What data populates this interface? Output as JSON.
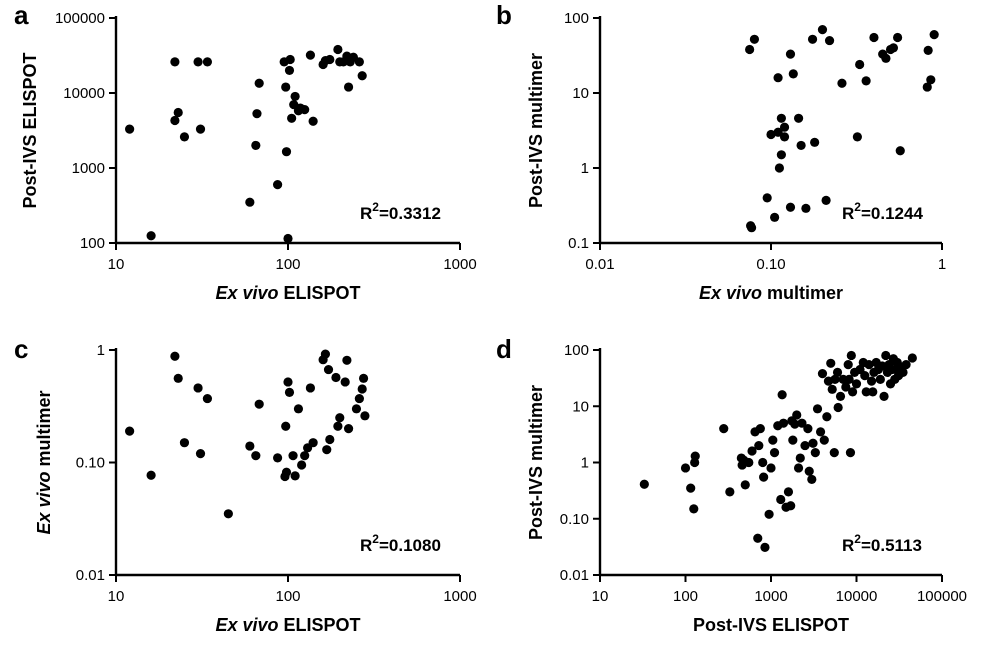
{
  "chart_data": [
    {
      "panel": "a",
      "type": "scatter",
      "xlabel": {
        "italic": "Ex vivo",
        "plain": " ELISPOT"
      },
      "ylabel": {
        "italic": "",
        "plain": "Post-IVS ELISPOT"
      },
      "xscale": "log",
      "yscale": "log",
      "xlim": [
        10,
        1000
      ],
      "ylim": [
        100,
        100000
      ],
      "xticks": [
        10,
        100,
        1000
      ],
      "xtick_labels": [
        "10",
        "100",
        "1000"
      ],
      "yticks": [
        100,
        1000,
        10000,
        100000
      ],
      "ytick_labels": [
        "100",
        "1000",
        "10000",
        "100000"
      ],
      "annotation": {
        "base": "R",
        "sup": "2",
        "value": "=0.3312"
      },
      "points": [
        [
          12,
          3300
        ],
        [
          16,
          125
        ],
        [
          22,
          26000
        ],
        [
          22,
          4300
        ],
        [
          23,
          5500
        ],
        [
          25,
          2600
        ],
        [
          30,
          26000
        ],
        [
          31,
          3300
        ],
        [
          34,
          26000
        ],
        [
          60,
          350
        ],
        [
          65,
          2000
        ],
        [
          66,
          5300
        ],
        [
          68,
          13500
        ],
        [
          87,
          600
        ],
        [
          95,
          26000
        ],
        [
          97,
          12000
        ],
        [
          98,
          1650
        ],
        [
          100,
          115
        ],
        [
          102,
          20000
        ],
        [
          103,
          28000
        ],
        [
          105,
          4600
        ],
        [
          108,
          7000
        ],
        [
          110,
          9000
        ],
        [
          115,
          5800
        ],
        [
          118,
          6300
        ],
        [
          125,
          6000
        ],
        [
          135,
          32000
        ],
        [
          140,
          4200
        ],
        [
          160,
          24000
        ],
        [
          165,
          27000
        ],
        [
          175,
          28000
        ],
        [
          195,
          38000
        ],
        [
          200,
          26000
        ],
        [
          210,
          26000
        ],
        [
          220,
          31000
        ],
        [
          225,
          12000
        ],
        [
          230,
          26000
        ],
        [
          240,
          30000
        ],
        [
          260,
          26000
        ],
        [
          270,
          17000
        ]
      ]
    },
    {
      "panel": "b",
      "type": "scatter",
      "xlabel": {
        "italic": "Ex vivo",
        "plain": " multimer"
      },
      "ylabel": {
        "italic": "",
        "plain": "Post-IVS multimer"
      },
      "xscale": "log",
      "yscale": "log",
      "xlim": [
        0.01,
        1
      ],
      "ylim": [
        0.1,
        100
      ],
      "xticks": [
        0.01,
        0.1,
        1
      ],
      "xtick_labels": [
        "0.01",
        "0.10",
        "1"
      ],
      "yticks": [
        0.1,
        1,
        10,
        100
      ],
      "ytick_labels": [
        "0.1",
        "1",
        "10",
        "100"
      ],
      "annotation": {
        "base": "R",
        "sup": "2",
        "value": "=0.1244"
      },
      "points": [
        [
          0.075,
          38
        ],
        [
          0.08,
          52
        ],
        [
          0.076,
          0.17
        ],
        [
          0.077,
          0.16
        ],
        [
          0.095,
          0.4
        ],
        [
          0.1,
          2.8
        ],
        [
          0.105,
          0.22
        ],
        [
          0.11,
          3.0
        ],
        [
          0.11,
          16
        ],
        [
          0.112,
          1.0
        ],
        [
          0.115,
          1.5
        ],
        [
          0.115,
          4.6
        ],
        [
          0.12,
          2.6
        ],
        [
          0.12,
          3.5
        ],
        [
          0.13,
          0.3
        ],
        [
          0.13,
          33
        ],
        [
          0.135,
          18
        ],
        [
          0.145,
          4.6
        ],
        [
          0.15,
          2.0
        ],
        [
          0.16,
          0.29
        ],
        [
          0.175,
          52
        ],
        [
          0.18,
          2.2
        ],
        [
          0.2,
          70
        ],
        [
          0.21,
          0.37
        ],
        [
          0.22,
          50
        ],
        [
          0.26,
          13.5
        ],
        [
          0.32,
          2.6
        ],
        [
          0.33,
          24
        ],
        [
          0.36,
          14.5
        ],
        [
          0.4,
          55
        ],
        [
          0.45,
          33
        ],
        [
          0.47,
          29
        ],
        [
          0.5,
          38
        ],
        [
          0.52,
          40
        ],
        [
          0.55,
          55
        ],
        [
          0.57,
          1.7
        ],
        [
          0.82,
          12
        ],
        [
          0.83,
          37
        ],
        [
          0.86,
          15
        ],
        [
          0.9,
          60
        ]
      ]
    },
    {
      "panel": "c",
      "type": "scatter",
      "xlabel": {
        "italic": "Ex vivo",
        "plain": " ELISPOT"
      },
      "ylabel": {
        "italic": "Ex vivo",
        "plain": " multimer"
      },
      "xscale": "log",
      "yscale": "log",
      "xlim": [
        10,
        1000
      ],
      "ylim": [
        0.01,
        1
      ],
      "xticks": [
        10,
        100,
        1000
      ],
      "xtick_labels": [
        "10",
        "100",
        "1000"
      ],
      "yticks": [
        0.01,
        0.1,
        1
      ],
      "ytick_labels": [
        "0.01",
        "0.10",
        "1"
      ],
      "annotation": {
        "base": "R",
        "sup": "2",
        "value": "=0.1080"
      },
      "points": [
        [
          12,
          0.19
        ],
        [
          16,
          0.077
        ],
        [
          22,
          0.88
        ],
        [
          23,
          0.56
        ],
        [
          25,
          0.15
        ],
        [
          30,
          0.46
        ],
        [
          31,
          0.12
        ],
        [
          34,
          0.37
        ],
        [
          45,
          0.035
        ],
        [
          60,
          0.14
        ],
        [
          65,
          0.115
        ],
        [
          68,
          0.33
        ],
        [
          87,
          0.11
        ],
        [
          96,
          0.075
        ],
        [
          97,
          0.21
        ],
        [
          98,
          0.082
        ],
        [
          100,
          0.52
        ],
        [
          102,
          0.42
        ],
        [
          107,
          0.115
        ],
        [
          110,
          0.076
        ],
        [
          115,
          0.3
        ],
        [
          120,
          0.095
        ],
        [
          125,
          0.115
        ],
        [
          130,
          0.135
        ],
        [
          135,
          0.46
        ],
        [
          140,
          0.15
        ],
        [
          160,
          0.82
        ],
        [
          165,
          0.92
        ],
        [
          168,
          0.13
        ],
        [
          172,
          0.67
        ],
        [
          175,
          0.16
        ],
        [
          190,
          0.57
        ],
        [
          195,
          0.21
        ],
        [
          200,
          0.25
        ],
        [
          215,
          0.52
        ],
        [
          220,
          0.81
        ],
        [
          225,
          0.2
        ],
        [
          250,
          0.3
        ],
        [
          260,
          0.37
        ],
        [
          270,
          0.45
        ],
        [
          275,
          0.56
        ],
        [
          280,
          0.26
        ]
      ]
    },
    {
      "panel": "d",
      "type": "scatter",
      "xlabel": {
        "italic": "",
        "plain": "Post-IVS ELISPOT"
      },
      "ylabel": {
        "italic": "",
        "plain": "Post-IVS multimer"
      },
      "xscale": "log",
      "yscale": "log",
      "xlim": [
        10,
        100000
      ],
      "ylim": [
        0.01,
        100
      ],
      "xticks": [
        10,
        100,
        1000,
        10000,
        100000
      ],
      "xtick_labels": [
        "10",
        "100",
        "1000",
        "10000",
        "100000"
      ],
      "yticks": [
        0.01,
        0.1,
        1,
        10,
        100
      ],
      "ytick_labels": [
        "0.01",
        "0.10",
        "1",
        "10",
        "100"
      ],
      "annotation": {
        "base": "R",
        "sup": "2",
        "value": "=0.5113"
      },
      "points": [
        [
          33,
          0.41
        ],
        [
          100,
          0.8
        ],
        [
          115,
          0.35
        ],
        [
          125,
          0.15
        ],
        [
          128,
          1.0
        ],
        [
          130,
          1.3
        ],
        [
          280,
          4.0
        ],
        [
          330,
          0.3
        ],
        [
          450,
          1.2
        ],
        [
          460,
          0.9
        ],
        [
          480,
          1.1
        ],
        [
          500,
          0.4
        ],
        [
          550,
          1.0
        ],
        [
          600,
          1.6
        ],
        [
          650,
          3.5
        ],
        [
          700,
          0.045
        ],
        [
          720,
          2.0
        ],
        [
          750,
          4.0
        ],
        [
          800,
          1.0
        ],
        [
          820,
          0.55
        ],
        [
          850,
          0.031
        ],
        [
          950,
          0.12
        ],
        [
          1000,
          0.8
        ],
        [
          1050,
          2.5
        ],
        [
          1100,
          1.5
        ],
        [
          1200,
          4.5
        ],
        [
          1300,
          0.22
        ],
        [
          1350,
          16
        ],
        [
          1400,
          5.0
        ],
        [
          1500,
          0.16
        ],
        [
          1600,
          0.3
        ],
        [
          1700,
          0.17
        ],
        [
          1750,
          5.5
        ],
        [
          1800,
          2.5
        ],
        [
          1900,
          4.8
        ],
        [
          2000,
          7.0
        ],
        [
          2100,
          0.8
        ],
        [
          2200,
          1.2
        ],
        [
          2300,
          5.0
        ],
        [
          2500,
          2.0
        ],
        [
          2700,
          4.0
        ],
        [
          2800,
          0.7
        ],
        [
          3000,
          0.5
        ],
        [
          3100,
          2.2
        ],
        [
          3300,
          1.5
        ],
        [
          3500,
          9.0
        ],
        [
          3800,
          3.5
        ],
        [
          4000,
          38
        ],
        [
          4200,
          2.5
        ],
        [
          4500,
          6.5
        ],
        [
          4700,
          28
        ],
        [
          5000,
          58
        ],
        [
          5200,
          20
        ],
        [
          5500,
          1.5
        ],
        [
          5600,
          30
        ],
        [
          6000,
          40
        ],
        [
          6100,
          9.5
        ],
        [
          6500,
          15
        ],
        [
          7000,
          30
        ],
        [
          7500,
          22
        ],
        [
          8000,
          55
        ],
        [
          8200,
          30
        ],
        [
          8500,
          1.5
        ],
        [
          8700,
          80
        ],
        [
          9000,
          18
        ],
        [
          9500,
          40
        ],
        [
          10000,
          25
        ],
        [
          11000,
          45
        ],
        [
          12000,
          60
        ],
        [
          12500,
          35
        ],
        [
          13000,
          18
        ],
        [
          14000,
          55
        ],
        [
          15000,
          28
        ],
        [
          15500,
          18
        ],
        [
          16000,
          40
        ],
        [
          17000,
          60
        ],
        [
          18000,
          45
        ],
        [
          19000,
          30
        ],
        [
          20000,
          52
        ],
        [
          21000,
          15
        ],
        [
          22000,
          80
        ],
        [
          23000,
          40
        ],
        [
          24000,
          55
        ],
        [
          25000,
          25
        ],
        [
          26000,
          45
        ],
        [
          27000,
          70
        ],
        [
          28000,
          30
        ],
        [
          29000,
          45
        ],
        [
          30000,
          60
        ],
        [
          31000,
          35
        ],
        [
          33000,
          50
        ],
        [
          35000,
          40
        ],
        [
          38000,
          55
        ],
        [
          45000,
          72
        ]
      ]
    }
  ]
}
